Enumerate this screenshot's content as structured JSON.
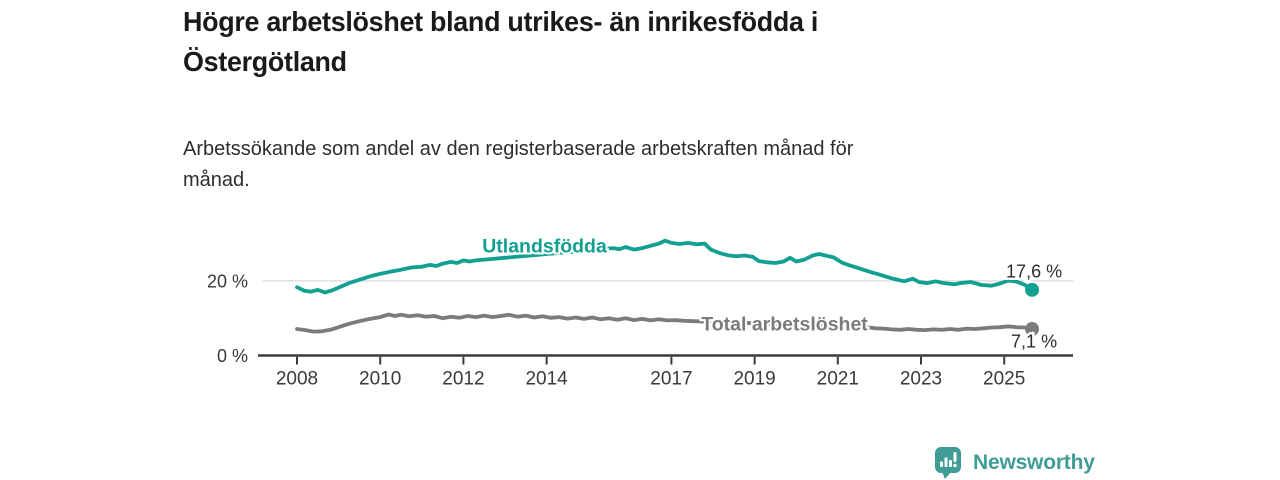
{
  "header": {
    "title": "Högre arbetslöshet bland utrikes- än inrikesfödda i\nÖstergötland",
    "subtitle": "Arbetssökande som andel av den registerbaserade arbetskraften månad för\nmånad."
  },
  "chart_data": {
    "type": "line",
    "title": "Högre arbetslöshet bland utrikes- än inrikesfödda i Östergötland",
    "subtitle": "Arbetssökande som andel av den registerbaserade arbetskraften månad för månad.",
    "grid": "single horizontal gridline at 20 %",
    "legend_position": "inline labels on lines",
    "x_axis": {
      "ticks": [
        2008,
        2010,
        2012,
        2014,
        2017,
        2019,
        2021,
        2023,
        2025
      ],
      "range": [
        2007.0,
        2026.6
      ]
    },
    "y_axis": {
      "unit": "%",
      "range": [
        0,
        33
      ],
      "ticks": [
        {
          "value": 0,
          "label": "0 %"
        },
        {
          "value": 20,
          "label": "20 %"
        }
      ]
    },
    "series": [
      {
        "name": "Utlandsfödda",
        "color": "#12a093",
        "end_value_label": "17,6 %",
        "end_point": [
          2025.67,
          17.6
        ],
        "label_position": {
          "x": 2013.95,
          "y": 27.6
        },
        "label_gap": [
          2012.32,
          2015.58
        ],
        "points": [
          [
            2008.0,
            18.3
          ],
          [
            2008.17,
            17.4
          ],
          [
            2008.33,
            17.1
          ],
          [
            2008.5,
            17.6
          ],
          [
            2008.67,
            16.9
          ],
          [
            2008.83,
            17.4
          ],
          [
            2009.0,
            18.2
          ],
          [
            2009.25,
            19.4
          ],
          [
            2009.5,
            20.3
          ],
          [
            2009.75,
            21.2
          ],
          [
            2010.0,
            21.9
          ],
          [
            2010.25,
            22.5
          ],
          [
            2010.5,
            23.0
          ],
          [
            2010.75,
            23.6
          ],
          [
            2011.0,
            23.8
          ],
          [
            2011.2,
            24.3
          ],
          [
            2011.35,
            24.0
          ],
          [
            2011.5,
            24.6
          ],
          [
            2011.7,
            25.1
          ],
          [
            2011.85,
            24.8
          ],
          [
            2012.0,
            25.5
          ],
          [
            2012.15,
            25.2
          ],
          [
            2012.3,
            25.5
          ],
          [
            2015.6,
            28.8
          ],
          [
            2015.75,
            28.5
          ],
          [
            2015.9,
            29.1
          ],
          [
            2016.1,
            28.4
          ],
          [
            2016.3,
            28.8
          ],
          [
            2016.5,
            29.4
          ],
          [
            2016.7,
            30.0
          ],
          [
            2016.85,
            30.8
          ],
          [
            2017.0,
            30.2
          ],
          [
            2017.2,
            29.9
          ],
          [
            2017.4,
            30.2
          ],
          [
            2017.6,
            29.8
          ],
          [
            2017.8,
            30.0
          ],
          [
            2017.95,
            28.4
          ],
          [
            2018.15,
            27.5
          ],
          [
            2018.35,
            26.9
          ],
          [
            2018.55,
            26.6
          ],
          [
            2018.75,
            26.8
          ],
          [
            2018.95,
            26.5
          ],
          [
            2019.1,
            25.3
          ],
          [
            2019.3,
            25.0
          ],
          [
            2019.5,
            24.8
          ],
          [
            2019.7,
            25.2
          ],
          [
            2019.85,
            26.2
          ],
          [
            2020.0,
            25.2
          ],
          [
            2020.2,
            25.7
          ],
          [
            2020.4,
            26.8
          ],
          [
            2020.55,
            27.2
          ],
          [
            2020.7,
            26.8
          ],
          [
            2020.9,
            26.3
          ],
          [
            2021.1,
            24.9
          ],
          [
            2021.3,
            24.1
          ],
          [
            2021.5,
            23.4
          ],
          [
            2021.75,
            22.5
          ],
          [
            2022.0,
            21.7
          ],
          [
            2022.2,
            21.0
          ],
          [
            2022.4,
            20.4
          ],
          [
            2022.6,
            19.9
          ],
          [
            2022.8,
            20.6
          ],
          [
            2022.95,
            19.7
          ],
          [
            2023.15,
            19.4
          ],
          [
            2023.35,
            19.9
          ],
          [
            2023.55,
            19.4
          ],
          [
            2023.8,
            19.1
          ],
          [
            2024.0,
            19.5
          ],
          [
            2024.2,
            19.7
          ],
          [
            2024.45,
            18.9
          ],
          [
            2024.7,
            18.7
          ],
          [
            2024.9,
            19.3
          ],
          [
            2025.1,
            20.1
          ],
          [
            2025.3,
            19.8
          ],
          [
            2025.5,
            18.9
          ],
          [
            2025.67,
            17.6
          ]
        ]
      },
      {
        "name": "Total arbetslöshet",
        "color": "#7b7b7b",
        "end_value_label": "7,1 %",
        "end_point": [
          2025.67,
          7.1
        ],
        "label_position": {
          "x": 2019.72,
          "y": 6.7
        },
        "label_gap": [
          2017.32,
          2021.68
        ],
        "points": [
          [
            2008.0,
            7.1
          ],
          [
            2008.2,
            6.8
          ],
          [
            2008.4,
            6.4
          ],
          [
            2008.6,
            6.5
          ],
          [
            2008.8,
            6.9
          ],
          [
            2009.0,
            7.6
          ],
          [
            2009.25,
            8.5
          ],
          [
            2009.5,
            9.2
          ],
          [
            2009.75,
            9.8
          ],
          [
            2010.0,
            10.3
          ],
          [
            2010.2,
            11.0
          ],
          [
            2010.35,
            10.6
          ],
          [
            2010.5,
            10.9
          ],
          [
            2010.7,
            10.5
          ],
          [
            2010.9,
            10.8
          ],
          [
            2011.1,
            10.4
          ],
          [
            2011.3,
            10.6
          ],
          [
            2011.5,
            10.0
          ],
          [
            2011.7,
            10.4
          ],
          [
            2011.9,
            10.1
          ],
          [
            2012.1,
            10.6
          ],
          [
            2012.3,
            10.3
          ],
          [
            2012.5,
            10.7
          ],
          [
            2012.7,
            10.3
          ],
          [
            2012.9,
            10.6
          ],
          [
            2013.1,
            10.9
          ],
          [
            2013.3,
            10.4
          ],
          [
            2013.5,
            10.7
          ],
          [
            2013.7,
            10.2
          ],
          [
            2013.9,
            10.5
          ],
          [
            2014.1,
            10.1
          ],
          [
            2014.3,
            10.3
          ],
          [
            2014.5,
            9.9
          ],
          [
            2014.7,
            10.2
          ],
          [
            2014.9,
            9.8
          ],
          [
            2015.1,
            10.2
          ],
          [
            2015.3,
            9.7
          ],
          [
            2015.5,
            10.0
          ],
          [
            2015.7,
            9.6
          ],
          [
            2015.9,
            10.0
          ],
          [
            2016.1,
            9.5
          ],
          [
            2016.3,
            9.8
          ],
          [
            2016.5,
            9.4
          ],
          [
            2016.7,
            9.7
          ],
          [
            2016.9,
            9.4
          ],
          [
            2017.1,
            9.5
          ],
          [
            2017.3,
            9.3
          ],
          [
            2021.7,
            7.6
          ],
          [
            2021.9,
            7.3
          ],
          [
            2022.1,
            7.2
          ],
          [
            2022.3,
            7.0
          ],
          [
            2022.5,
            6.9
          ],
          [
            2022.7,
            7.1
          ],
          [
            2022.9,
            6.9
          ],
          [
            2023.1,
            6.8
          ],
          [
            2023.3,
            7.0
          ],
          [
            2023.5,
            6.9
          ],
          [
            2023.7,
            7.1
          ],
          [
            2023.9,
            6.9
          ],
          [
            2024.1,
            7.2
          ],
          [
            2024.3,
            7.1
          ],
          [
            2024.5,
            7.3
          ],
          [
            2024.7,
            7.5
          ],
          [
            2024.9,
            7.6
          ],
          [
            2025.1,
            7.8
          ],
          [
            2025.3,
            7.6
          ],
          [
            2025.5,
            7.5
          ],
          [
            2025.67,
            7.1
          ]
        ]
      }
    ],
    "colors": {
      "grid": "#d9d9d9",
      "axis": "#3a3a3a",
      "tick_label": "#3a3a3a",
      "end_label_text": "#2e2e2e"
    }
  },
  "footer": {
    "brand": "Newsworthy",
    "logo_icon": "speech-bubble-bar-chart-icon",
    "brand_color": "#3f9d96"
  }
}
